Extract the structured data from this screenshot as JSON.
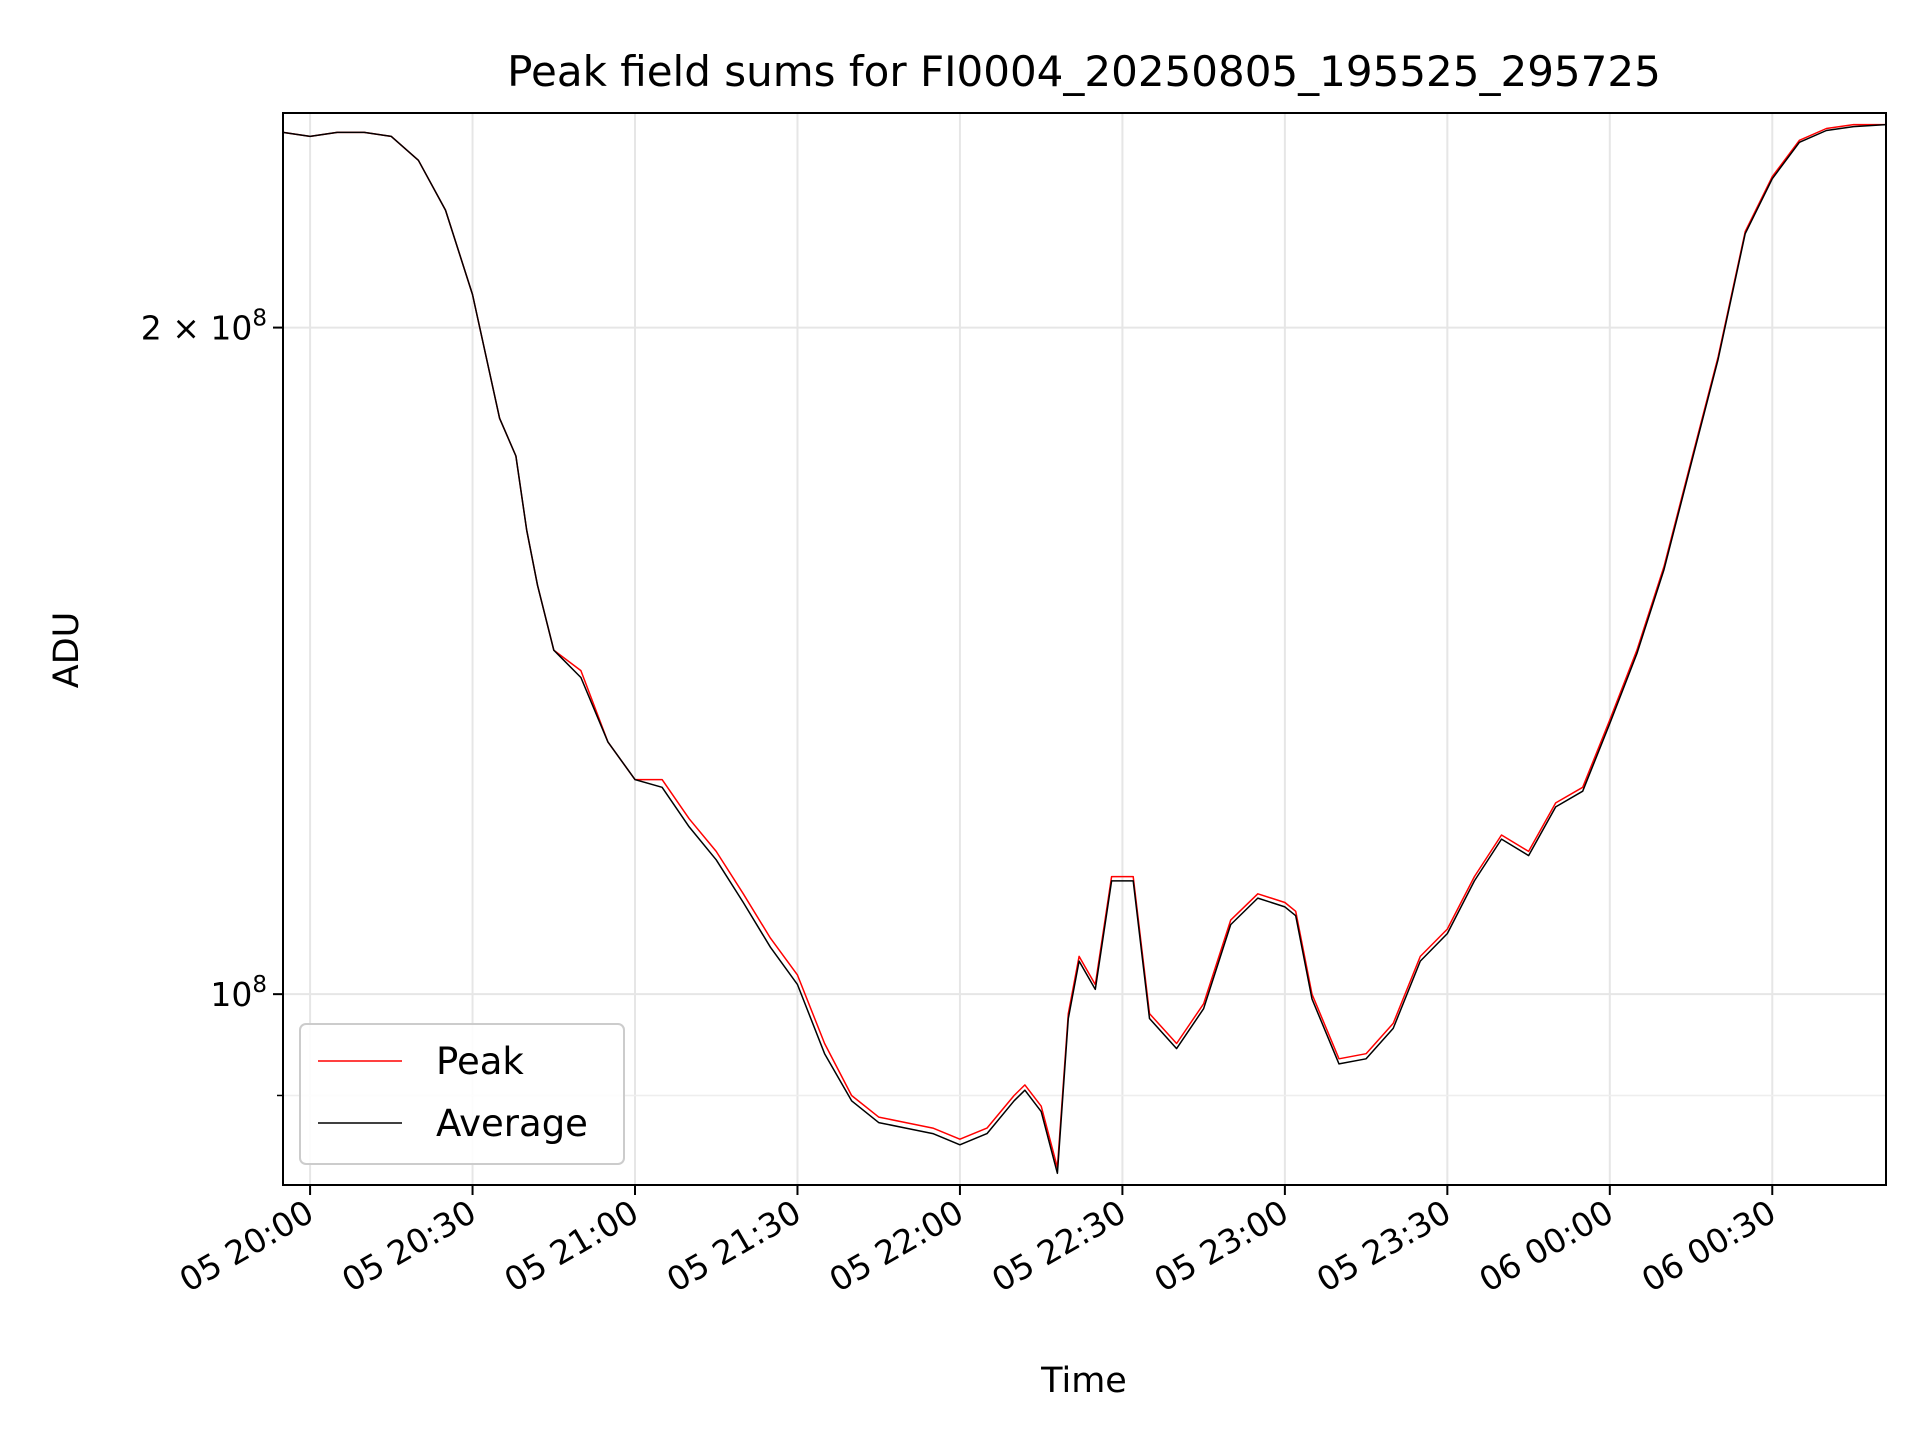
{
  "chart_data": {
    "type": "line",
    "title": "Peak field sums for FI0004_20250805_195525_295725",
    "xlabel": "Time",
    "ylabel": "ADU",
    "x_ticks": [
      "05 20:00",
      "05 20:30",
      "05 21:00",
      "05 21:30",
      "05 22:00",
      "05 22:30",
      "05 23:00",
      "05 23:30",
      "06 00:00",
      "06 00:30"
    ],
    "y_ticks": [
      {
        "value": 100000000,
        "mantissa": "",
        "base": "10",
        "exp": "8"
      },
      {
        "value": 200000000,
        "mantissa": "2 × ",
        "base": "10",
        "exp": "8"
      }
    ],
    "y_scale": "log",
    "ylim": [
      82000000,
      250000000
    ],
    "xlim": [
      "05 19:55",
      "06 00:51"
    ],
    "grid": true,
    "legend_position": "lower-left",
    "colors": {
      "Peak": "#ff0000",
      "Average": "#000000"
    },
    "x": [
      "05 19:55",
      "05 20:00",
      "05 20:05",
      "05 20:10",
      "05 20:15",
      "05 20:20",
      "05 20:25",
      "05 20:30",
      "05 20:35",
      "05 20:38",
      "05 20:40",
      "05 20:42",
      "05 20:45",
      "05 20:50",
      "05 20:55",
      "05 21:00",
      "05 21:05",
      "05 21:10",
      "05 21:15",
      "05 21:20",
      "05 21:25",
      "05 21:30",
      "05 21:35",
      "05 21:40",
      "05 21:45",
      "05 21:50",
      "05 21:55",
      "05 22:00",
      "05 22:05",
      "05 22:10",
      "05 22:12",
      "05 22:15",
      "05 22:18",
      "05 22:20",
      "05 22:22",
      "05 22:25",
      "05 22:28",
      "05 22:32",
      "05 22:35",
      "05 22:40",
      "05 22:45",
      "05 22:50",
      "05 22:55",
      "05 23:00",
      "05 23:02",
      "05 23:05",
      "05 23:10",
      "05 23:15",
      "05 23:20",
      "05 23:25",
      "05 23:30",
      "05 23:35",
      "05 23:40",
      "05 23:45",
      "05 23:50",
      "05 23:55",
      "06 00:00",
      "06 00:05",
      "06 00:10",
      "06 00:15",
      "06 00:20",
      "06 00:25",
      "06 00:30",
      "06 00:35",
      "06 00:40",
      "06 00:45",
      "06 00:51"
    ],
    "series": [
      {
        "name": "Peak",
        "values": [
          245000000,
          244000000,
          245000000,
          245000000,
          244000000,
          238000000,
          226000000,
          207000000,
          182000000,
          175000000,
          162000000,
          153000000,
          143000000,
          140000000,
          130000000,
          125000000,
          125000000,
          120000000,
          116000000,
          111000000,
          106000000,
          102000000,
          95000000,
          90000000,
          88000000,
          87500000,
          87000000,
          86000000,
          87000000,
          90000000,
          91000000,
          89000000,
          83500000,
          98000000,
          104000000,
          101000000,
          113000000,
          113000000,
          98000000,
          95000000,
          99000000,
          108000000,
          111000000,
          110000000,
          109000000,
          100000000,
          93500000,
          94000000,
          97000000,
          104000000,
          107000000,
          113000000,
          118000000,
          116000000,
          122000000,
          124000000,
          133000000,
          143000000,
          156000000,
          174000000,
          194000000,
          221000000,
          234000000,
          243000000,
          246000000,
          247000000,
          247000000
        ]
      },
      {
        "name": "Average",
        "values": [
          245000000,
          244000000,
          245000000,
          245000000,
          244000000,
          238000000,
          226000000,
          207000000,
          182000000,
          175000000,
          162000000,
          153000000,
          143000000,
          139000000,
          130000000,
          125000000,
          124000000,
          119000000,
          115000000,
          110000000,
          105000000,
          101000000,
          94000000,
          89500000,
          87500000,
          87000000,
          86500000,
          85500000,
          86500000,
          89500000,
          90500000,
          88500000,
          83000000,
          97500000,
          103500000,
          100500000,
          112500000,
          112500000,
          97500000,
          94500000,
          98500000,
          107500000,
          110500000,
          109500000,
          108500000,
          99500000,
          93000000,
          93500000,
          96500000,
          103500000,
          106500000,
          112500000,
          117500000,
          115500000,
          121500000,
          123500000,
          132500000,
          142500000,
          155500000,
          173500000,
          193500000,
          220500000,
          233500000,
          242500000,
          245500000,
          246500000,
          247000000
        ]
      }
    ]
  }
}
